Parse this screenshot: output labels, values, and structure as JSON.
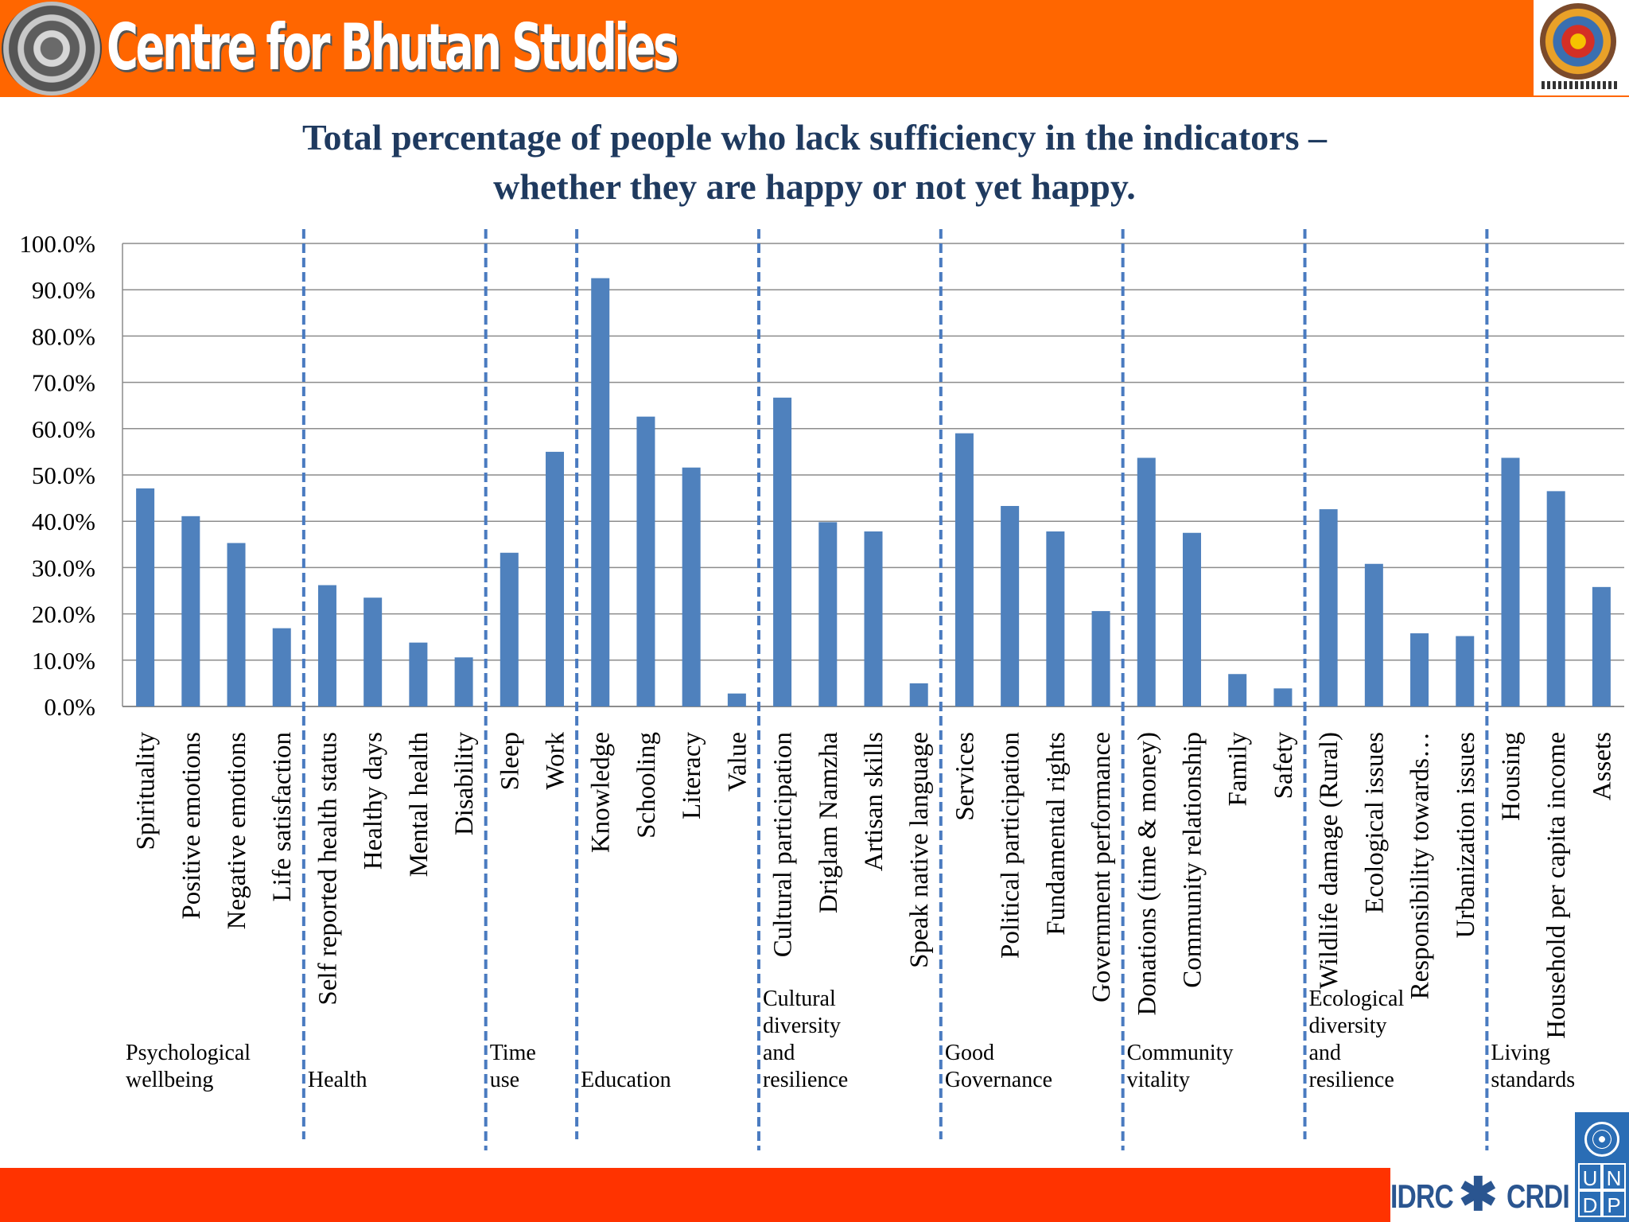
{
  "header": {
    "org_title": "Centre for Bhutan Studies",
    "background_color": "#ff6600"
  },
  "title": {
    "line1": "Total percentage of people who lack sufficiency in the indicators –",
    "line2": "whether they are happy or not yet happy."
  },
  "chart_data": {
    "type": "bar",
    "title": "Total percentage of people who lack sufficiency in the indicators – whether they are happy or not yet happy.",
    "xlabel": "",
    "ylabel": "",
    "ylim": [
      0,
      100
    ],
    "y_ticks": [
      0,
      10,
      20,
      30,
      40,
      50,
      60,
      70,
      80,
      90,
      100
    ],
    "y_tick_labels": [
      "0.0%",
      "10.0%",
      "20.0%",
      "30.0%",
      "40.0%",
      "50.0%",
      "60.0%",
      "70.0%",
      "80.0%",
      "90.0%",
      "100.0%"
    ],
    "grid": true,
    "legend": "none",
    "bar_color": "#4f81bd",
    "categories": [
      "Spirituality",
      "Positive emotions",
      "Negative emotions",
      "Life satisfaction",
      "Self reported health status",
      "Healthy days",
      "Mental health",
      "Disability",
      "Sleep",
      "Work",
      "Knowledge",
      "Schooling",
      "Literacy",
      "Value",
      "Cultural participation",
      "Driglam Namzha",
      "Artisan skills",
      "Speak native language",
      "Services",
      "Political participation",
      "Fundamental rights",
      "Government performance",
      "Donations (time & money)",
      "Community relationship",
      "Family",
      "Safety",
      "Wildlife damage (Rural)",
      "Ecological issues",
      "Responsibility towards…",
      "Urbanization issues",
      "Housing",
      "Household per capita income",
      "Assets"
    ],
    "values": [
      47.1,
      41.1,
      35.3,
      16.9,
      26.2,
      23.5,
      13.8,
      10.6,
      33.2,
      55.0,
      92.5,
      62.6,
      51.6,
      2.8,
      66.7,
      39.8,
      37.8,
      5.0,
      59.0,
      43.3,
      37.8,
      20.6,
      53.7,
      37.5,
      7.0,
      3.9,
      42.6,
      30.8,
      15.8,
      15.2,
      53.7,
      46.5,
      25.8
    ],
    "domains": [
      {
        "name_lines": [
          "Psychological",
          "wellbeing"
        ],
        "first": 0,
        "count": 4
      },
      {
        "name_lines": [
          "Health"
        ],
        "first": 4,
        "count": 4
      },
      {
        "name_lines": [
          "Time",
          "use"
        ],
        "first": 8,
        "count": 2
      },
      {
        "name_lines": [
          "Education"
        ],
        "first": 10,
        "count": 4
      },
      {
        "name_lines": [
          "Cultural",
          "diversity",
          "and",
          "resilience"
        ],
        "first": 14,
        "count": 4
      },
      {
        "name_lines": [
          "Good",
          "Governance"
        ],
        "first": 18,
        "count": 4
      },
      {
        "name_lines": [
          "Community",
          "vitality"
        ],
        "first": 22,
        "count": 4
      },
      {
        "name_lines": [
          "Ecological",
          "diversity",
          "and",
          "resilience"
        ],
        "first": 26,
        "count": 4
      },
      {
        "name_lines": [
          "Living",
          "standards"
        ],
        "first": 30,
        "count": 3
      }
    ]
  },
  "footer": {
    "idrc": "IDRC",
    "crdi": "CRDI",
    "undp_letters": [
      "U",
      "N",
      "D",
      "P"
    ]
  }
}
